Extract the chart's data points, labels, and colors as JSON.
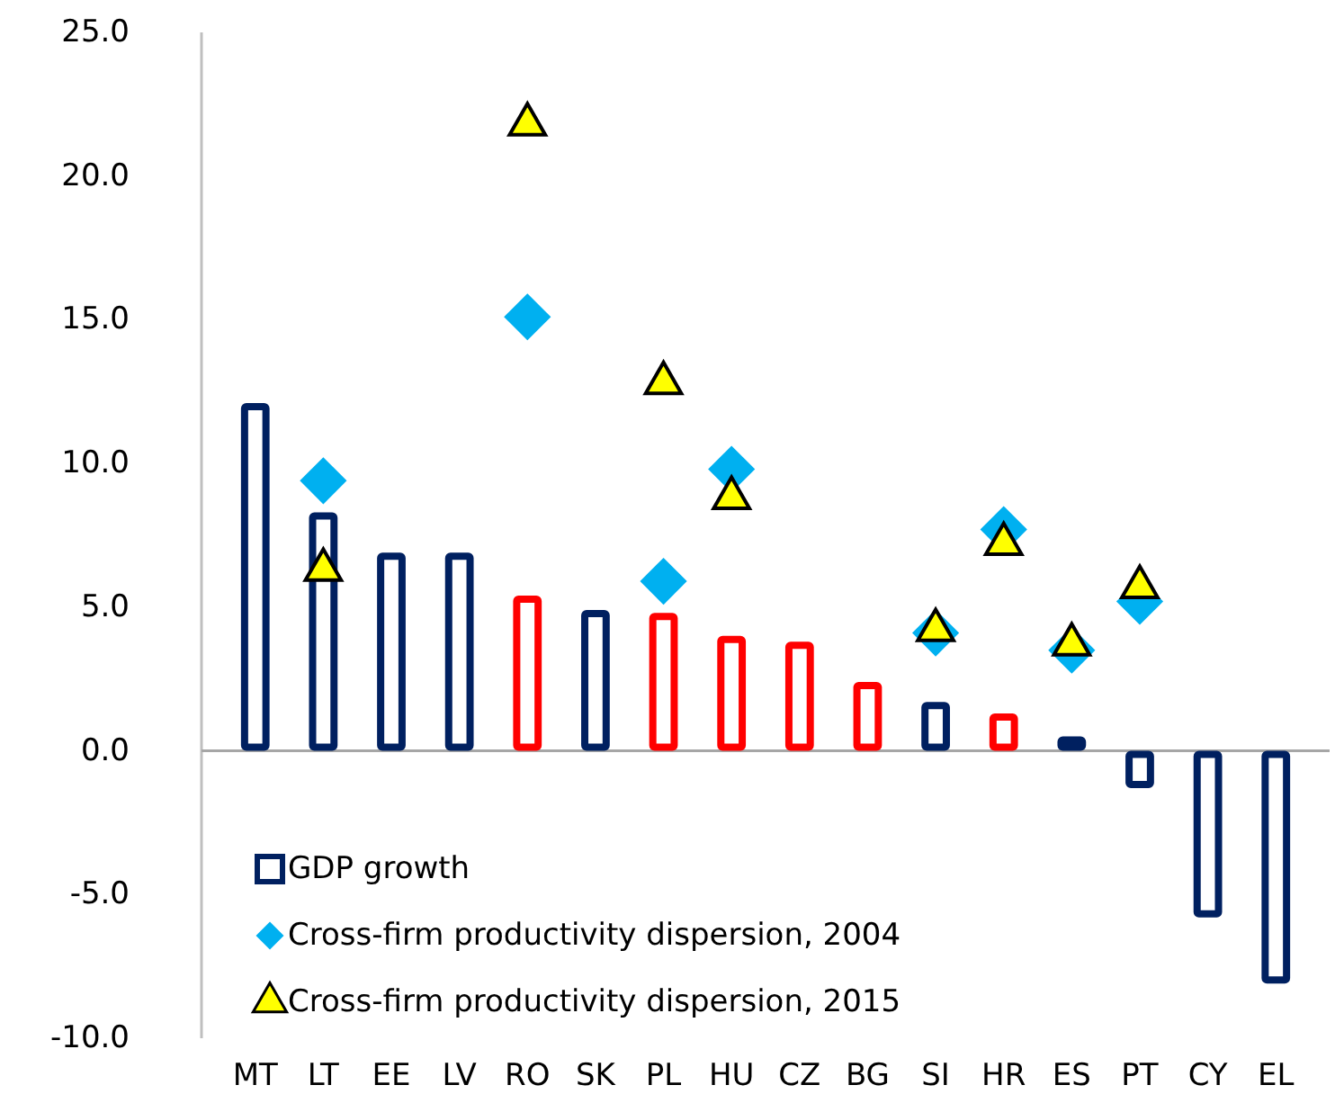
{
  "chart_data": {
    "type": "bar",
    "categories": [
      "MT",
      "LT",
      "EE",
      "LV",
      "RO",
      "SK",
      "PL",
      "HU",
      "CZ",
      "BG",
      "SI",
      "HR",
      "ES",
      "PT",
      "CY",
      "EL"
    ],
    "series": [
      {
        "name": "GDP growth",
        "color": "#002060",
        "colors": [
          "#002060",
          "#002060",
          "#002060",
          "#002060",
          "#ff0000",
          "#002060",
          "#ff0000",
          "#ff0000",
          "#ff0000",
          "#ff0000",
          "#002060",
          "#ff0000",
          "#002060",
          "#002060",
          "#002060",
          "#002060"
        ],
        "values": [
          12.1,
          8.3,
          6.9,
          6.9,
          5.4,
          4.9,
          4.8,
          4.0,
          3.8,
          2.4,
          1.7,
          1.3,
          0.5,
          -1.3,
          -5.8,
          -8.1
        ]
      },
      {
        "name": "Cross-firm productivity dispersion, 2004",
        "type": "scatter",
        "marker": "diamond",
        "color": "#00b0f0",
        "values": [
          null,
          9.4,
          null,
          null,
          15.1,
          null,
          5.9,
          9.8,
          null,
          null,
          4.1,
          7.7,
          3.5,
          5.2,
          null,
          null
        ]
      },
      {
        "name": "Cross-firm productivity dispersion, 2015",
        "type": "scatter",
        "marker": "triangle",
        "color": "#ffff00",
        "values": [
          null,
          6.3,
          null,
          null,
          21.8,
          null,
          12.8,
          8.8,
          null,
          null,
          4.2,
          7.2,
          3.7,
          5.7,
          null,
          null
        ]
      }
    ],
    "ylim": [
      -10,
      25
    ],
    "yticks": [
      {
        "value": -10,
        "label": "-10.0"
      },
      {
        "value": -5,
        "label": "-5.0"
      },
      {
        "value": 0,
        "label": "0.0"
      },
      {
        "value": 5,
        "label": "5.0"
      },
      {
        "value": 10,
        "label": "10.0"
      },
      {
        "value": 15,
        "label": "15.0"
      },
      {
        "value": 20,
        "label": "20.0"
      },
      {
        "value": 25,
        "label": "25.0"
      }
    ],
    "legend": "bottom left"
  }
}
